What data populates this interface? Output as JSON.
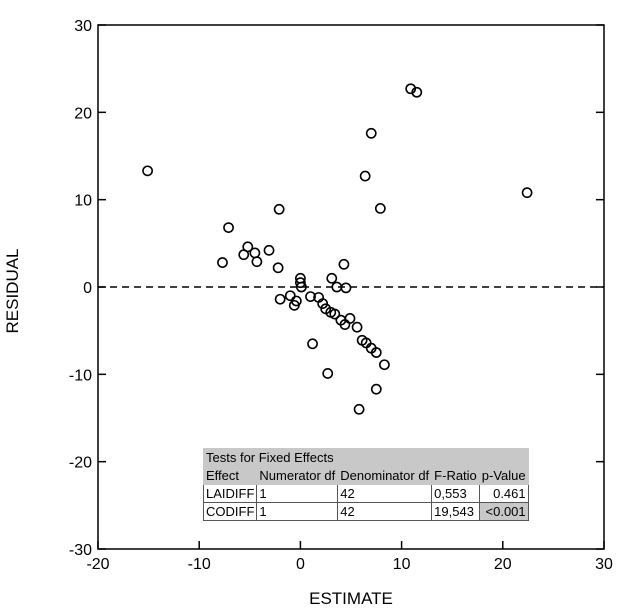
{
  "chart_data": {
    "type": "scatter",
    "xlabel": "ESTIMATE",
    "ylabel": "RESIDUAL",
    "xlim": [
      -20,
      30
    ],
    "ylim": [
      -30,
      30
    ],
    "x_ticks": [
      "-20",
      "-10",
      "0",
      "10",
      "20",
      "30"
    ],
    "y_ticks": [
      "30",
      "20",
      "10",
      "0",
      "-10",
      "-20",
      "-30"
    ],
    "reference_line": {
      "y": 0,
      "style": "dashed"
    },
    "marker": "open-circle",
    "points": [
      {
        "x": -15.1,
        "y": 13.3
      },
      {
        "x": -7.7,
        "y": 2.8
      },
      {
        "x": -7.1,
        "y": 6.8
      },
      {
        "x": -5.6,
        "y": 3.7
      },
      {
        "x": -5.2,
        "y": 4.6
      },
      {
        "x": -4.5,
        "y": 3.9
      },
      {
        "x": -4.3,
        "y": 2.9
      },
      {
        "x": -3.1,
        "y": 4.2
      },
      {
        "x": -2.1,
        "y": 8.9
      },
      {
        "x": -2.2,
        "y": 2.2
      },
      {
        "x": -2.0,
        "y": -1.4
      },
      {
        "x": -1.0,
        "y": -1.0
      },
      {
        "x": -0.6,
        "y": -2.1
      },
      {
        "x": -0.4,
        "y": -1.6
      },
      {
        "x": 0.0,
        "y": 1.0
      },
      {
        "x": 0.0,
        "y": 0.5
      },
      {
        "x": 0.1,
        "y": 0.0
      },
      {
        "x": 1.2,
        "y": -6.5
      },
      {
        "x": 1.0,
        "y": -1.1
      },
      {
        "x": 1.8,
        "y": -1.2
      },
      {
        "x": 2.2,
        "y": -1.9
      },
      {
        "x": 2.5,
        "y": -2.5
      },
      {
        "x": 2.7,
        "y": -9.9
      },
      {
        "x": 3.0,
        "y": -2.9
      },
      {
        "x": 3.1,
        "y": 1.0
      },
      {
        "x": 3.4,
        "y": -3.1
      },
      {
        "x": 3.6,
        "y": 0.0
      },
      {
        "x": 4.0,
        "y": -3.8
      },
      {
        "x": 4.4,
        "y": -4.3
      },
      {
        "x": 4.3,
        "y": 2.6
      },
      {
        "x": 4.5,
        "y": -0.1
      },
      {
        "x": 4.9,
        "y": -3.6
      },
      {
        "x": 5.6,
        "y": -4.6
      },
      {
        "x": 5.8,
        "y": -14.0
      },
      {
        "x": 6.1,
        "y": -6.1
      },
      {
        "x": 6.4,
        "y": 12.7
      },
      {
        "x": 6.5,
        "y": -6.4
      },
      {
        "x": 7.0,
        "y": -7.0
      },
      {
        "x": 7.0,
        "y": 17.6
      },
      {
        "x": 7.5,
        "y": -11.7
      },
      {
        "x": 7.5,
        "y": -7.5
      },
      {
        "x": 7.9,
        "y": 9.0
      },
      {
        "x": 8.3,
        "y": -8.9
      },
      {
        "x": 10.9,
        "y": 22.7
      },
      {
        "x": 11.5,
        "y": 22.3
      },
      {
        "x": 22.4,
        "y": 10.8
      }
    ]
  },
  "table": {
    "title": "Tests for Fixed Effects",
    "headers": [
      "Effect",
      "Numerator df",
      "Denominator df",
      "F-Ratio",
      "p-Value"
    ],
    "rows": [
      [
        "LAIDIFF",
        "1",
        "42",
        "0,553",
        "0.461"
      ],
      [
        "CODIFF",
        "1",
        "42",
        "19,543",
        "<0.001"
      ]
    ]
  }
}
